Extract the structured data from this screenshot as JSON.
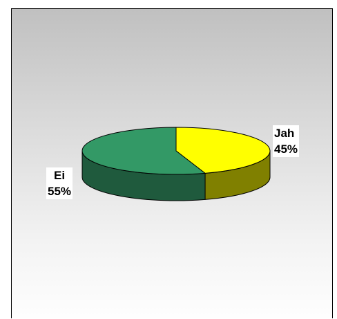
{
  "chart_data": {
    "type": "pie",
    "title": "",
    "categories": [
      "Jah",
      "Ei"
    ],
    "values": [
      45,
      55
    ],
    "value_labels": [
      "45%",
      "55%"
    ],
    "colors": {
      "Jah": {
        "top": "#ffff00",
        "side": "#808000"
      },
      "Ei": {
        "top": "#339966",
        "side": "#1f5a3d"
      }
    },
    "legend": "none",
    "style": "3d"
  }
}
